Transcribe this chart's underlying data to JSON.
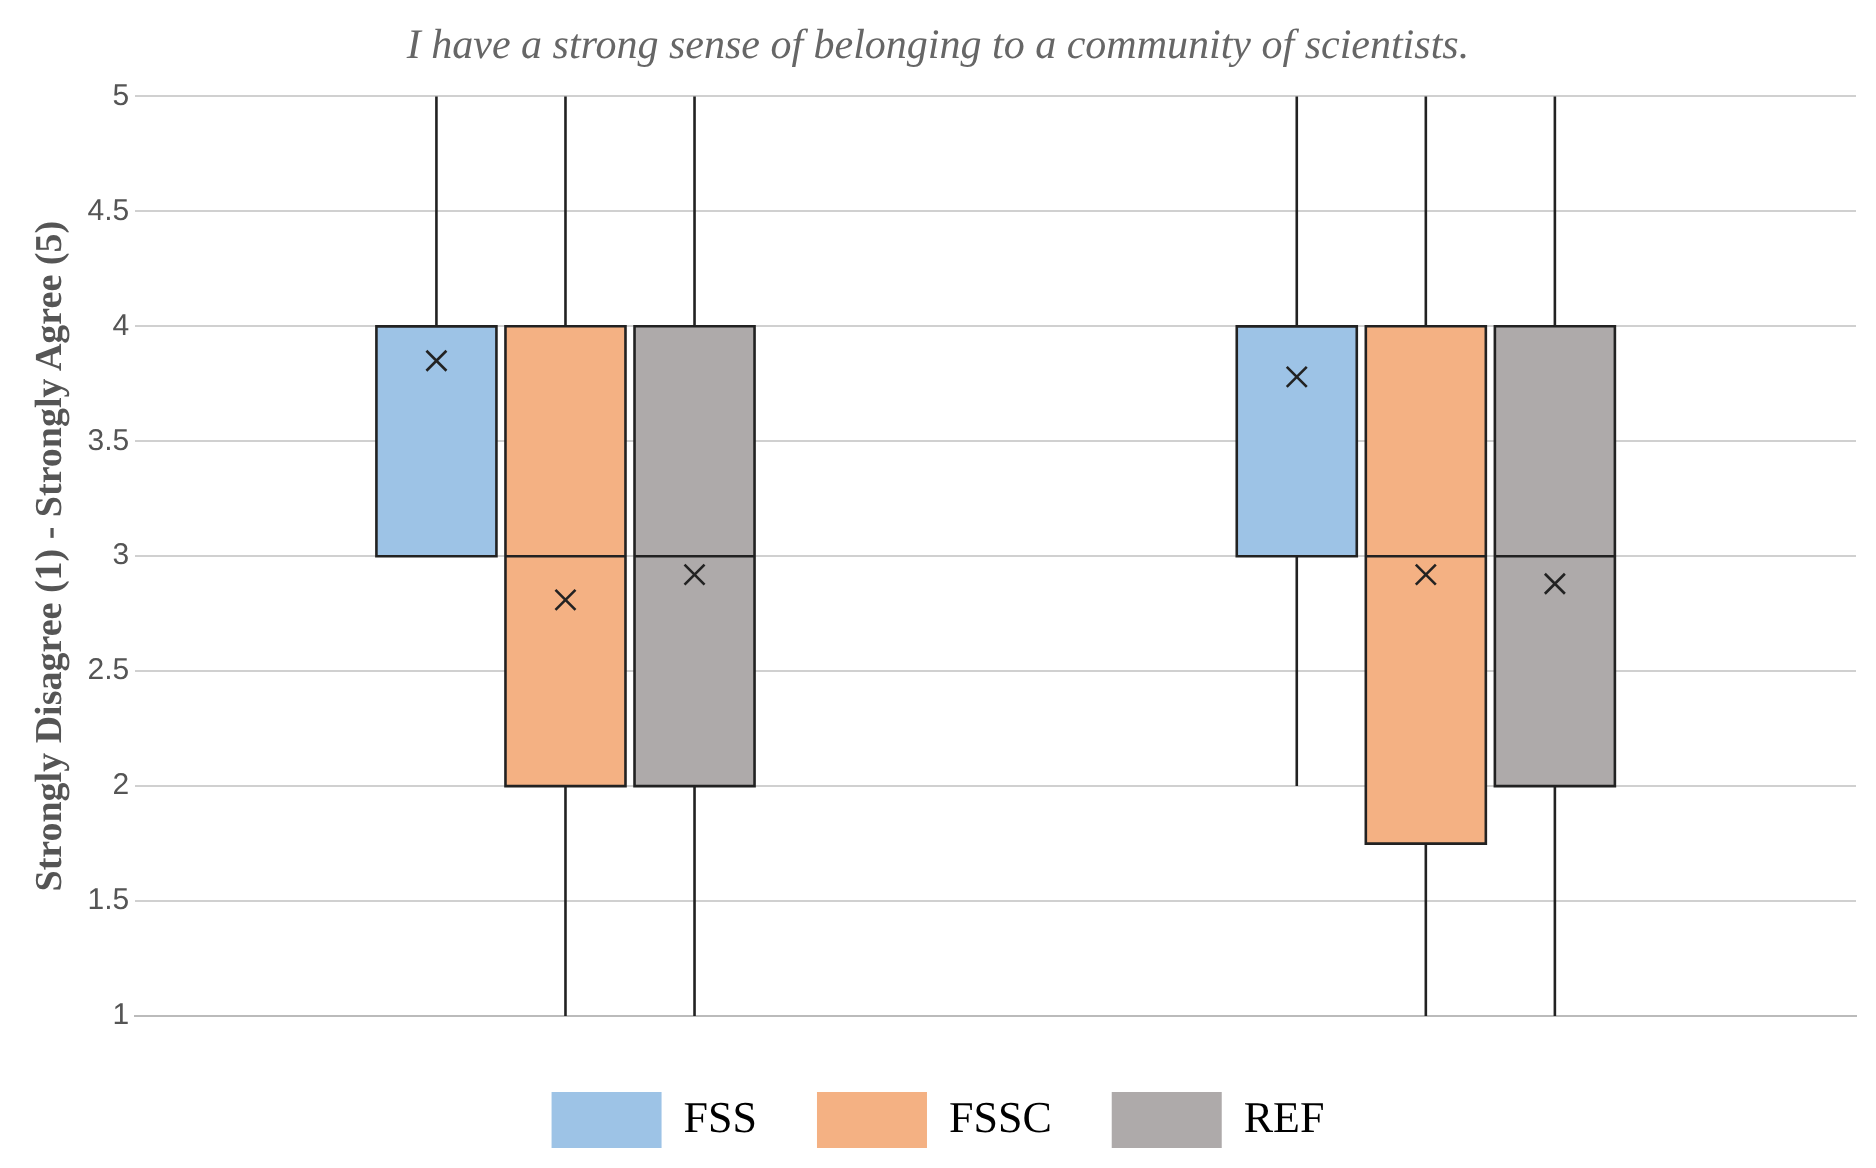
{
  "chart_data": {
    "type": "box",
    "title": "I have a strong sense of belonging to a community of scientists.",
    "ylabel": "Strongly Disagree (1) - Strongly Agree (5)",
    "categories": [
      null,
      null
    ],
    "ylim": [
      1,
      5
    ],
    "yticks": [
      1,
      1.5,
      2,
      2.5,
      3,
      3.5,
      4,
      4.5,
      5
    ],
    "grid": "y",
    "legend": "bottom",
    "marker": "cross",
    "series": [
      {
        "name": "FSS",
        "color": "#9dc3e6",
        "boxes": [
          {
            "low": 3,
            "q1": 3,
            "median": 4,
            "q3": 4,
            "high": 5,
            "mean": 3.85
          },
          {
            "low": 2,
            "q1": 3,
            "median": 4,
            "q3": 4,
            "high": 5,
            "mean": 3.78
          }
        ]
      },
      {
        "name": "FSSC",
        "color": "#f4b183",
        "boxes": [
          {
            "low": 1,
            "q1": 2,
            "median": 3,
            "q3": 4,
            "high": 5,
            "mean": 2.81
          },
          {
            "low": 1,
            "q1": 1.75,
            "median": 3,
            "q3": 4,
            "high": 5,
            "mean": 2.92
          }
        ]
      },
      {
        "name": "REF",
        "color": "#aeaaaa",
        "boxes": [
          {
            "low": 1,
            "q1": 2,
            "median": 3,
            "q3": 4,
            "high": 5,
            "mean": 2.92
          },
          {
            "low": 1,
            "q1": 2,
            "median": 3,
            "q3": 4,
            "high": 5,
            "mean": 2.88
          }
        ]
      }
    ]
  }
}
